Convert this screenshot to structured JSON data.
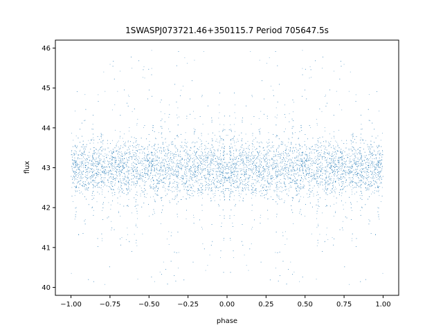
{
  "chart_data": {
    "type": "scatter",
    "title": "1SWASPJ073721.46+350115.7 Period 705647.5s",
    "xlabel": "phase",
    "ylabel": "flux",
    "xlim": [
      -1.1,
      1.1
    ],
    "ylim": [
      39.8,
      46.2
    ],
    "xticks": [
      -1.0,
      -0.75,
      -0.5,
      -0.25,
      0.0,
      0.25,
      0.5,
      0.75,
      1.0
    ],
    "xtick_labels": [
      "−1.00",
      "−0.75",
      "−0.50",
      "−0.25",
      "0.00",
      "0.25",
      "0.50",
      "0.75",
      "1.00"
    ],
    "yticks": [
      40,
      41,
      42,
      43,
      44,
      45,
      46
    ],
    "ytick_labels": [
      "40",
      "41",
      "42",
      "43",
      "44",
      "45",
      "46"
    ],
    "grid": false,
    "point_color": "#1f77b4",
    "series": [
      {
        "x_range": [
          -1.0,
          1.0
        ],
        "y_center": 43.0,
        "y_core_range": [
          42.3,
          43.8
        ],
        "y_full_range": [
          40.05,
          45.95
        ],
        "symmetric_about_zero": true
      }
    ]
  }
}
